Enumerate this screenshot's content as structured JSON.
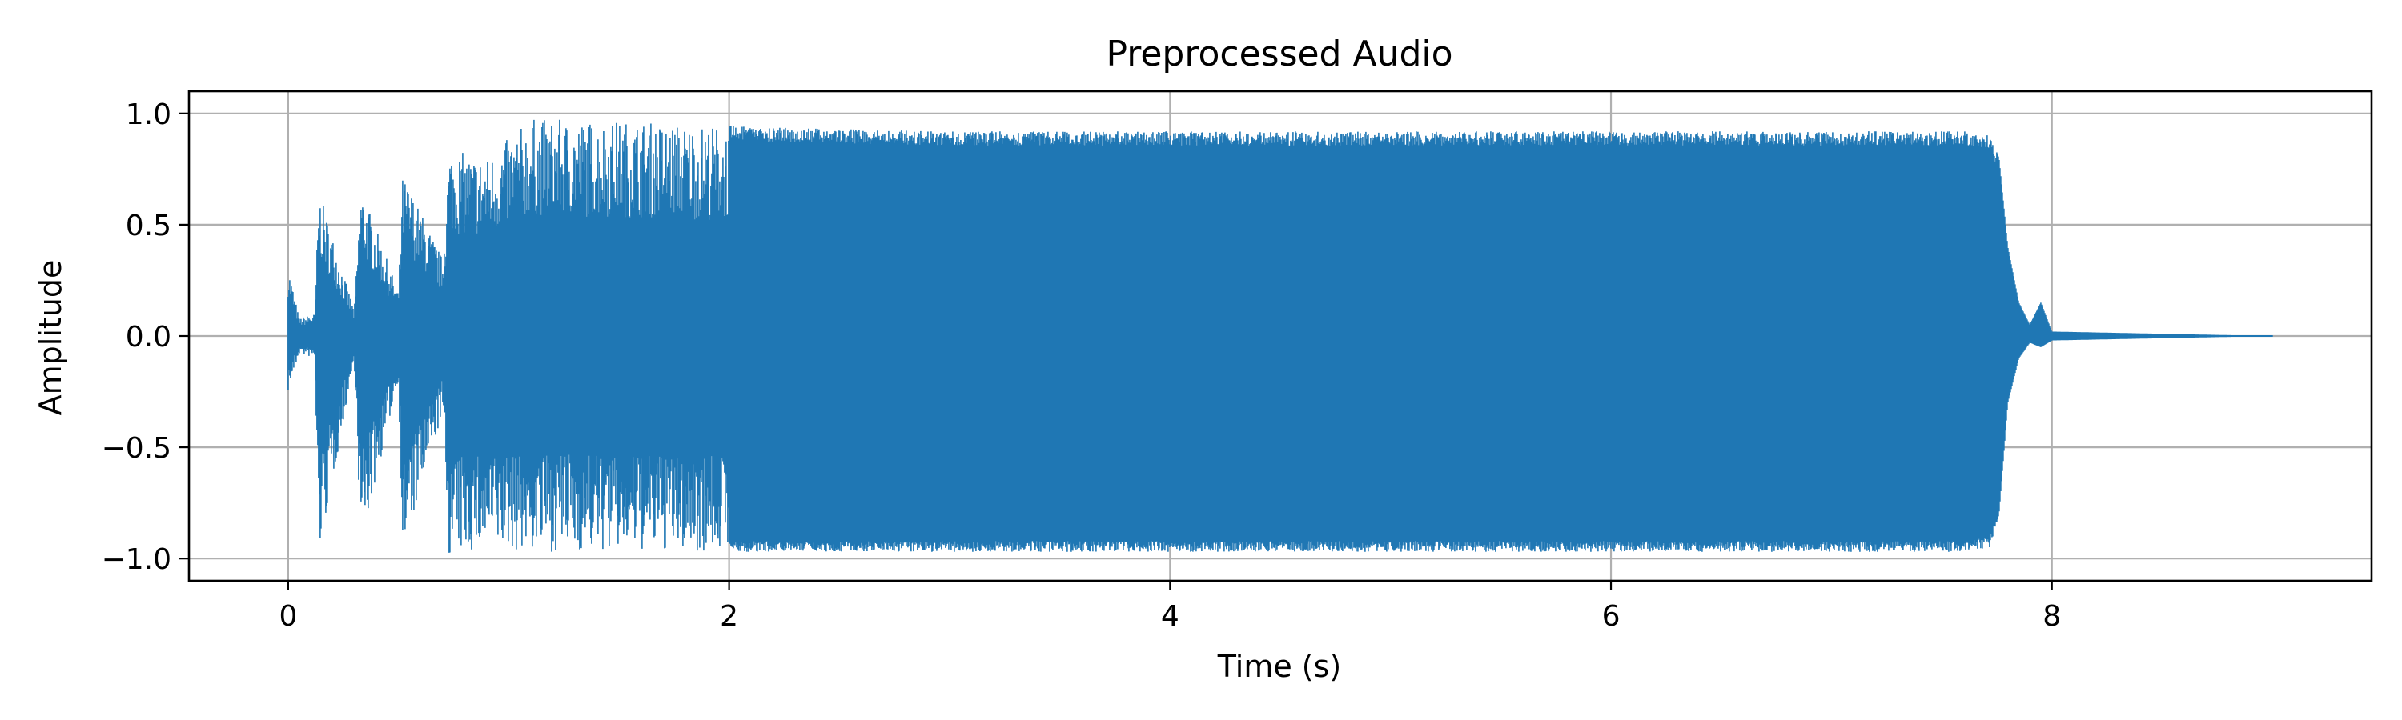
{
  "chart_data": {
    "type": "line",
    "title": "Preprocessed Audio",
    "xlabel": "Time (s)",
    "ylabel": "Amplitude",
    "xlim": [
      -0.45,
      9.45
    ],
    "ylim": [
      -1.1,
      1.1
    ],
    "xticks": [
      0,
      2,
      4,
      6,
      8
    ],
    "xtick_labels": [
      "0",
      "2",
      "4",
      "6",
      "8"
    ],
    "yticks": [
      -1.0,
      -0.5,
      0.0,
      0.5,
      1.0
    ],
    "ytick_labels": [
      "−1.0",
      "−0.5",
      "0.0",
      "0.5",
      "1.0"
    ],
    "grid": true,
    "colors": {
      "series": "#1f77b4",
      "grid": "#b0b0b0",
      "axes": "#000000"
    },
    "series": [
      {
        "envelope": {
          "t": [
            0.0,
            0.05,
            0.12,
            0.14,
            0.3,
            0.33,
            0.5,
            0.52,
            0.7,
            0.73,
            0.9,
            1.1,
            1.3,
            1.5,
            1.7,
            1.9,
            2.1,
            2.5,
            3.0,
            7.6,
            7.72,
            7.76,
            7.8,
            7.85,
            7.9,
            7.95,
            8.0,
            9.0
          ],
          "upper": [
            0.32,
            0.08,
            0.1,
            0.65,
            0.12,
            0.67,
            0.2,
            0.73,
            0.35,
            0.84,
            0.8,
            0.98,
            0.97,
            0.97,
            0.96,
            0.95,
            0.94,
            0.93,
            0.92,
            0.92,
            0.9,
            0.8,
            0.4,
            0.15,
            0.05,
            0.15,
            0.02,
            0.0
          ],
          "lower": [
            -0.25,
            -0.08,
            -0.1,
            -0.99,
            -0.12,
            -0.95,
            -0.2,
            -0.99,
            -0.35,
            -0.99,
            -0.96,
            -0.97,
            -0.97,
            -0.97,
            -0.97,
            -0.97,
            -0.97,
            -0.97,
            -0.97,
            -0.97,
            -0.95,
            -0.8,
            -0.3,
            -0.1,
            -0.03,
            -0.05,
            -0.02,
            0.0
          ]
        }
      }
    ]
  }
}
